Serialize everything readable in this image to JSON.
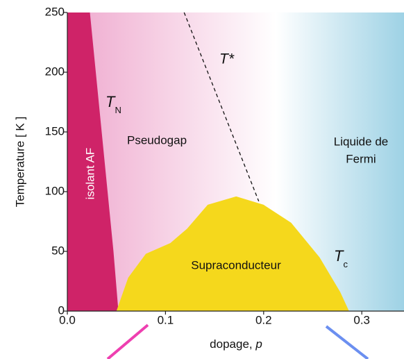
{
  "chart_data": {
    "type": "phase-diagram",
    "xlabel": [
      "dopage, ",
      "p"
    ],
    "ylabel": "Temperature [ K ]",
    "xlim": [
      0,
      0.343
    ],
    "ylim": [
      0,
      250
    ],
    "xticks": [
      {
        "value": 0,
        "label": "0.0"
      },
      0.1,
      0.2,
      0.3
    ],
    "yticks": [
      0,
      50,
      100,
      150,
      200,
      250
    ],
    "background": {
      "left": "#f0b0d2",
      "right": "#9ed2e5"
    },
    "regions": [
      {
        "label": "isolant AF",
        "color": "#cf2368",
        "x": [
          0,
          0,
          0.023,
          0.029,
          0.035,
          0.041,
          0.047,
          0.052
        ],
        "y": [
          0,
          250,
          250,
          200,
          150,
          100,
          50,
          0
        ]
      },
      {
        "label": "Supraconducteur",
        "color": "#f5d81c",
        "x": [
          0.05,
          0.062,
          0.08,
          0.105,
          0.122,
          0.143,
          0.172,
          0.2,
          0.228,
          0.257,
          0.278,
          0.287
        ],
        "y": [
          0,
          28,
          48,
          57,
          69,
          89,
          96,
          89,
          74,
          45,
          16,
          0
        ]
      }
    ],
    "lines": [
      {
        "label": "T*",
        "x": [
          0.119,
          0.195
        ],
        "y": [
          250,
          92
        ]
      }
    ],
    "annotations": [
      {
        "text": "T",
        "sub": "N"
      },
      {
        "text": "T",
        "sub": "c"
      },
      {
        "text": "Pseudogap"
      },
      {
        "lines": [
          "Liquide de",
          "Fermi"
        ]
      }
    ]
  }
}
